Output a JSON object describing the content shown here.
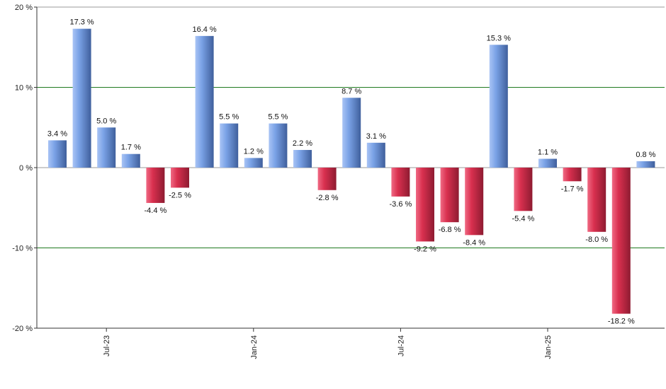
{
  "chart_data": {
    "type": "bar",
    "title": "",
    "xlabel": "",
    "ylabel": "",
    "ylim": [
      -20,
      20
    ],
    "y_ticks": [
      {
        "value": 20,
        "label": "20 %"
      },
      {
        "value": 10,
        "label": "10 %"
      },
      {
        "value": 0,
        "label": "0 %"
      },
      {
        "value": -10,
        "label": "-10 %"
      },
      {
        "value": -20,
        "label": "-20 %"
      }
    ],
    "x_tick_labels": [
      {
        "index": 2,
        "label": "Jul-23"
      },
      {
        "index": 8,
        "label": "Jan-24"
      },
      {
        "index": 14,
        "label": "Jul-24"
      },
      {
        "index": 20,
        "label": "Jan-25"
      }
    ],
    "values": [
      3.4,
      17.3,
      5.0,
      1.7,
      -4.4,
      -2.5,
      16.4,
      5.5,
      1.2,
      5.5,
      2.2,
      -2.8,
      8.7,
      3.1,
      -3.6,
      -9.2,
      -6.8,
      -8.4,
      15.3,
      -5.4,
      1.1,
      -1.7,
      -8.0,
      -18.2,
      0.8
    ],
    "value_labels": [
      "3.4 %",
      "17.3 %",
      "5.0 %",
      "1.7 %",
      "-4.4 %",
      "-2.5 %",
      "16.4 %",
      "5.5 %",
      "1.2 %",
      "5.5 %",
      "2.2 %",
      "-2.8 %",
      "8.7 %",
      "3.1 %",
      "-3.6 %",
      "-9.2 %",
      "-6.8 %",
      "-8.4 %",
      "15.3 %",
      "-5.4 %",
      "1.1 %",
      "-1.7 %",
      "-8.0 %",
      "-18.2 %",
      "0.8 %"
    ],
    "grid": true,
    "legend": "none",
    "colors": {
      "positive_light": "#a9c4f5",
      "positive_mid": "#7aa2e6",
      "positive_dark": "#3f5f9c",
      "negative_light": "#f06a84",
      "negative_mid": "#d9304f",
      "negative_dark": "#8e1b31",
      "gridline": "#1f7a1f",
      "axis": "#999999"
    }
  }
}
